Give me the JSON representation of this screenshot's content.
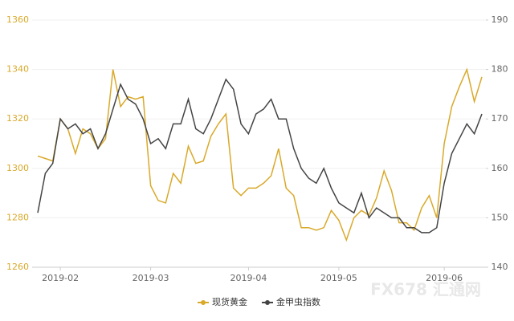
{
  "chart_data": {
    "type": "line",
    "categories": [
      null,
      null,
      null,
      "2019-02",
      null,
      null,
      null,
      null,
      null,
      null,
      null,
      null,
      null,
      null,
      null,
      "2019-03",
      null,
      null,
      null,
      null,
      null,
      null,
      null,
      null,
      null,
      null,
      null,
      null,
      "2019-04",
      null,
      null,
      null,
      null,
      null,
      null,
      null,
      null,
      null,
      null,
      null,
      "2019-05",
      null,
      null,
      null,
      null,
      null,
      null,
      null,
      null,
      null,
      null,
      null,
      null,
      null,
      "2019-06",
      null,
      null,
      null,
      null,
      null
    ],
    "series": [
      {
        "name": "现货黄金",
        "color": "#d9a92a",
        "values": [
          1305,
          1304,
          1303,
          1320,
          1316,
          1306,
          1316,
          1314,
          1308,
          1312,
          1340,
          1325,
          1329,
          1328,
          1329,
          1293,
          1287,
          1286,
          1298,
          1294,
          1309,
          1302,
          1303,
          1313,
          1318,
          1322,
          1292,
          1289,
          1292,
          1292,
          1294,
          1297,
          1308,
          1292,
          1289,
          1276,
          1276,
          1275,
          1276,
          1283,
          1279,
          1271,
          1280,
          1283,
          1281,
          1288,
          1299,
          1291,
          1278,
          1278,
          1275,
          1284,
          1289,
          1280,
          1310,
          1325,
          1333,
          1340,
          1327,
          1337
        ]
      },
      {
        "name": "金甲虫指数",
        "color": "#444444",
        "axis": "y2",
        "values": [
          151,
          159,
          161,
          170,
          168,
          169,
          167,
          168,
          164,
          167,
          172,
          177,
          174,
          173,
          170,
          165,
          166,
          164,
          169,
          169,
          174,
          168,
          167,
          170,
          174,
          178,
          176,
          169,
          167,
          171,
          172,
          174,
          170,
          170,
          164,
          160,
          158,
          157,
          160,
          156,
          153,
          152,
          151,
          155,
          150,
          152,
          151,
          150,
          150,
          148,
          148,
          147,
          147,
          148,
          157,
          163,
          166,
          169,
          167,
          171
        ]
      }
    ],
    "ylim": [
      1260,
      1360
    ],
    "yticks": [
      1260,
      1280,
      1300,
      1320,
      1340,
      1360
    ],
    "y2lim": [
      140,
      190
    ],
    "y2ticks": [
      140,
      150,
      160,
      170,
      180,
      190
    ],
    "grid": true,
    "legend": "bottom",
    "watermark": "FX678 汇通网"
  }
}
